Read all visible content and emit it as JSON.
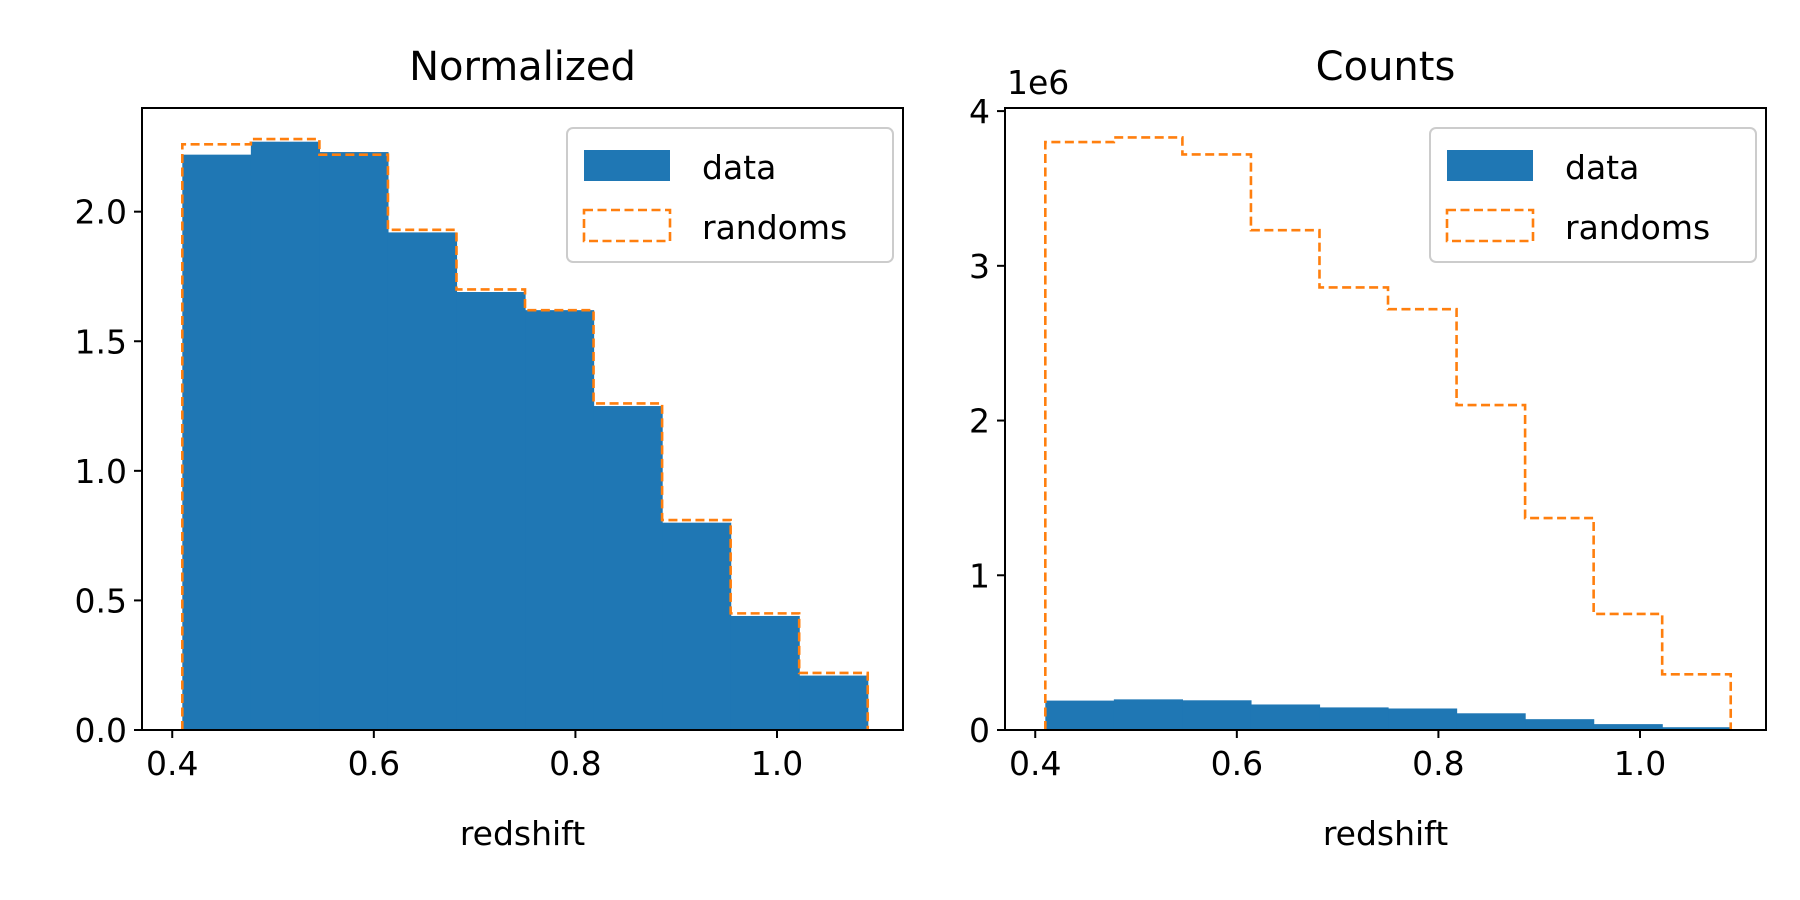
{
  "chart_data": [
    {
      "type": "histogram",
      "title": "Normalized",
      "xlabel": "redshift",
      "ylabel": "",
      "xlim": [
        0.37,
        1.125
      ],
      "ylim": [
        0,
        2.4
      ],
      "xticks": [
        0.4,
        0.6,
        0.8,
        1.0
      ],
      "xtick_labels": [
        "0.4",
        "0.6",
        "0.8",
        "1.0"
      ],
      "yticks": [
        0.0,
        0.5,
        1.0,
        1.5,
        2.0
      ],
      "ytick_labels": [
        "0.0",
        "0.5",
        "1.0",
        "1.5",
        "2.0"
      ],
      "y_offset_label": "",
      "bin_edges": [
        0.41,
        0.478,
        0.546,
        0.614,
        0.682,
        0.75,
        0.818,
        0.886,
        0.954,
        1.022,
        1.09
      ],
      "series": [
        {
          "name": "data",
          "style": "filled",
          "color": "#1f77b4",
          "values": [
            2.22,
            2.27,
            2.23,
            1.92,
            1.69,
            1.62,
            1.25,
            0.8,
            0.44,
            0.21
          ]
        },
        {
          "name": "randoms",
          "style": "step-dashed",
          "color": "#ff7f0e",
          "values": [
            2.26,
            2.28,
            2.22,
            1.93,
            1.7,
            1.62,
            1.26,
            0.81,
            0.45,
            0.22
          ]
        }
      ],
      "legend": {
        "position": "top-right",
        "entries": [
          "data",
          "randoms"
        ]
      },
      "grid": false
    },
    {
      "type": "histogram",
      "title": "Counts",
      "xlabel": "redshift",
      "ylabel": "",
      "xlim": [
        0.37,
        1.125
      ],
      "ylim": [
        0,
        4020000
      ],
      "xticks": [
        0.4,
        0.6,
        0.8,
        1.0
      ],
      "xtick_labels": [
        "0.4",
        "0.6",
        "0.8",
        "1.0"
      ],
      "yticks": [
        0,
        1000000,
        2000000,
        3000000,
        4000000
      ],
      "ytick_labels": [
        "0",
        "1",
        "2",
        "3",
        "4"
      ],
      "y_offset_label": "1e6",
      "bin_edges": [
        0.41,
        0.478,
        0.546,
        0.614,
        0.682,
        0.75,
        0.818,
        0.886,
        0.954,
        1.022,
        1.09
      ],
      "series": [
        {
          "name": "data",
          "style": "filled",
          "color": "#1f77b4",
          "values": [
            190000,
            198000,
            192000,
            165000,
            146000,
            139000,
            108000,
            70000,
            38000,
            18000
          ]
        },
        {
          "name": "randoms",
          "style": "step-dashed",
          "color": "#ff7f0e",
          "values": [
            3800000,
            3830000,
            3720000,
            3230000,
            2860000,
            2720000,
            2100000,
            1370000,
            750000,
            360000
          ]
        }
      ],
      "legend": {
        "position": "top-right",
        "entries": [
          "data",
          "randoms"
        ]
      },
      "grid": false
    }
  ]
}
